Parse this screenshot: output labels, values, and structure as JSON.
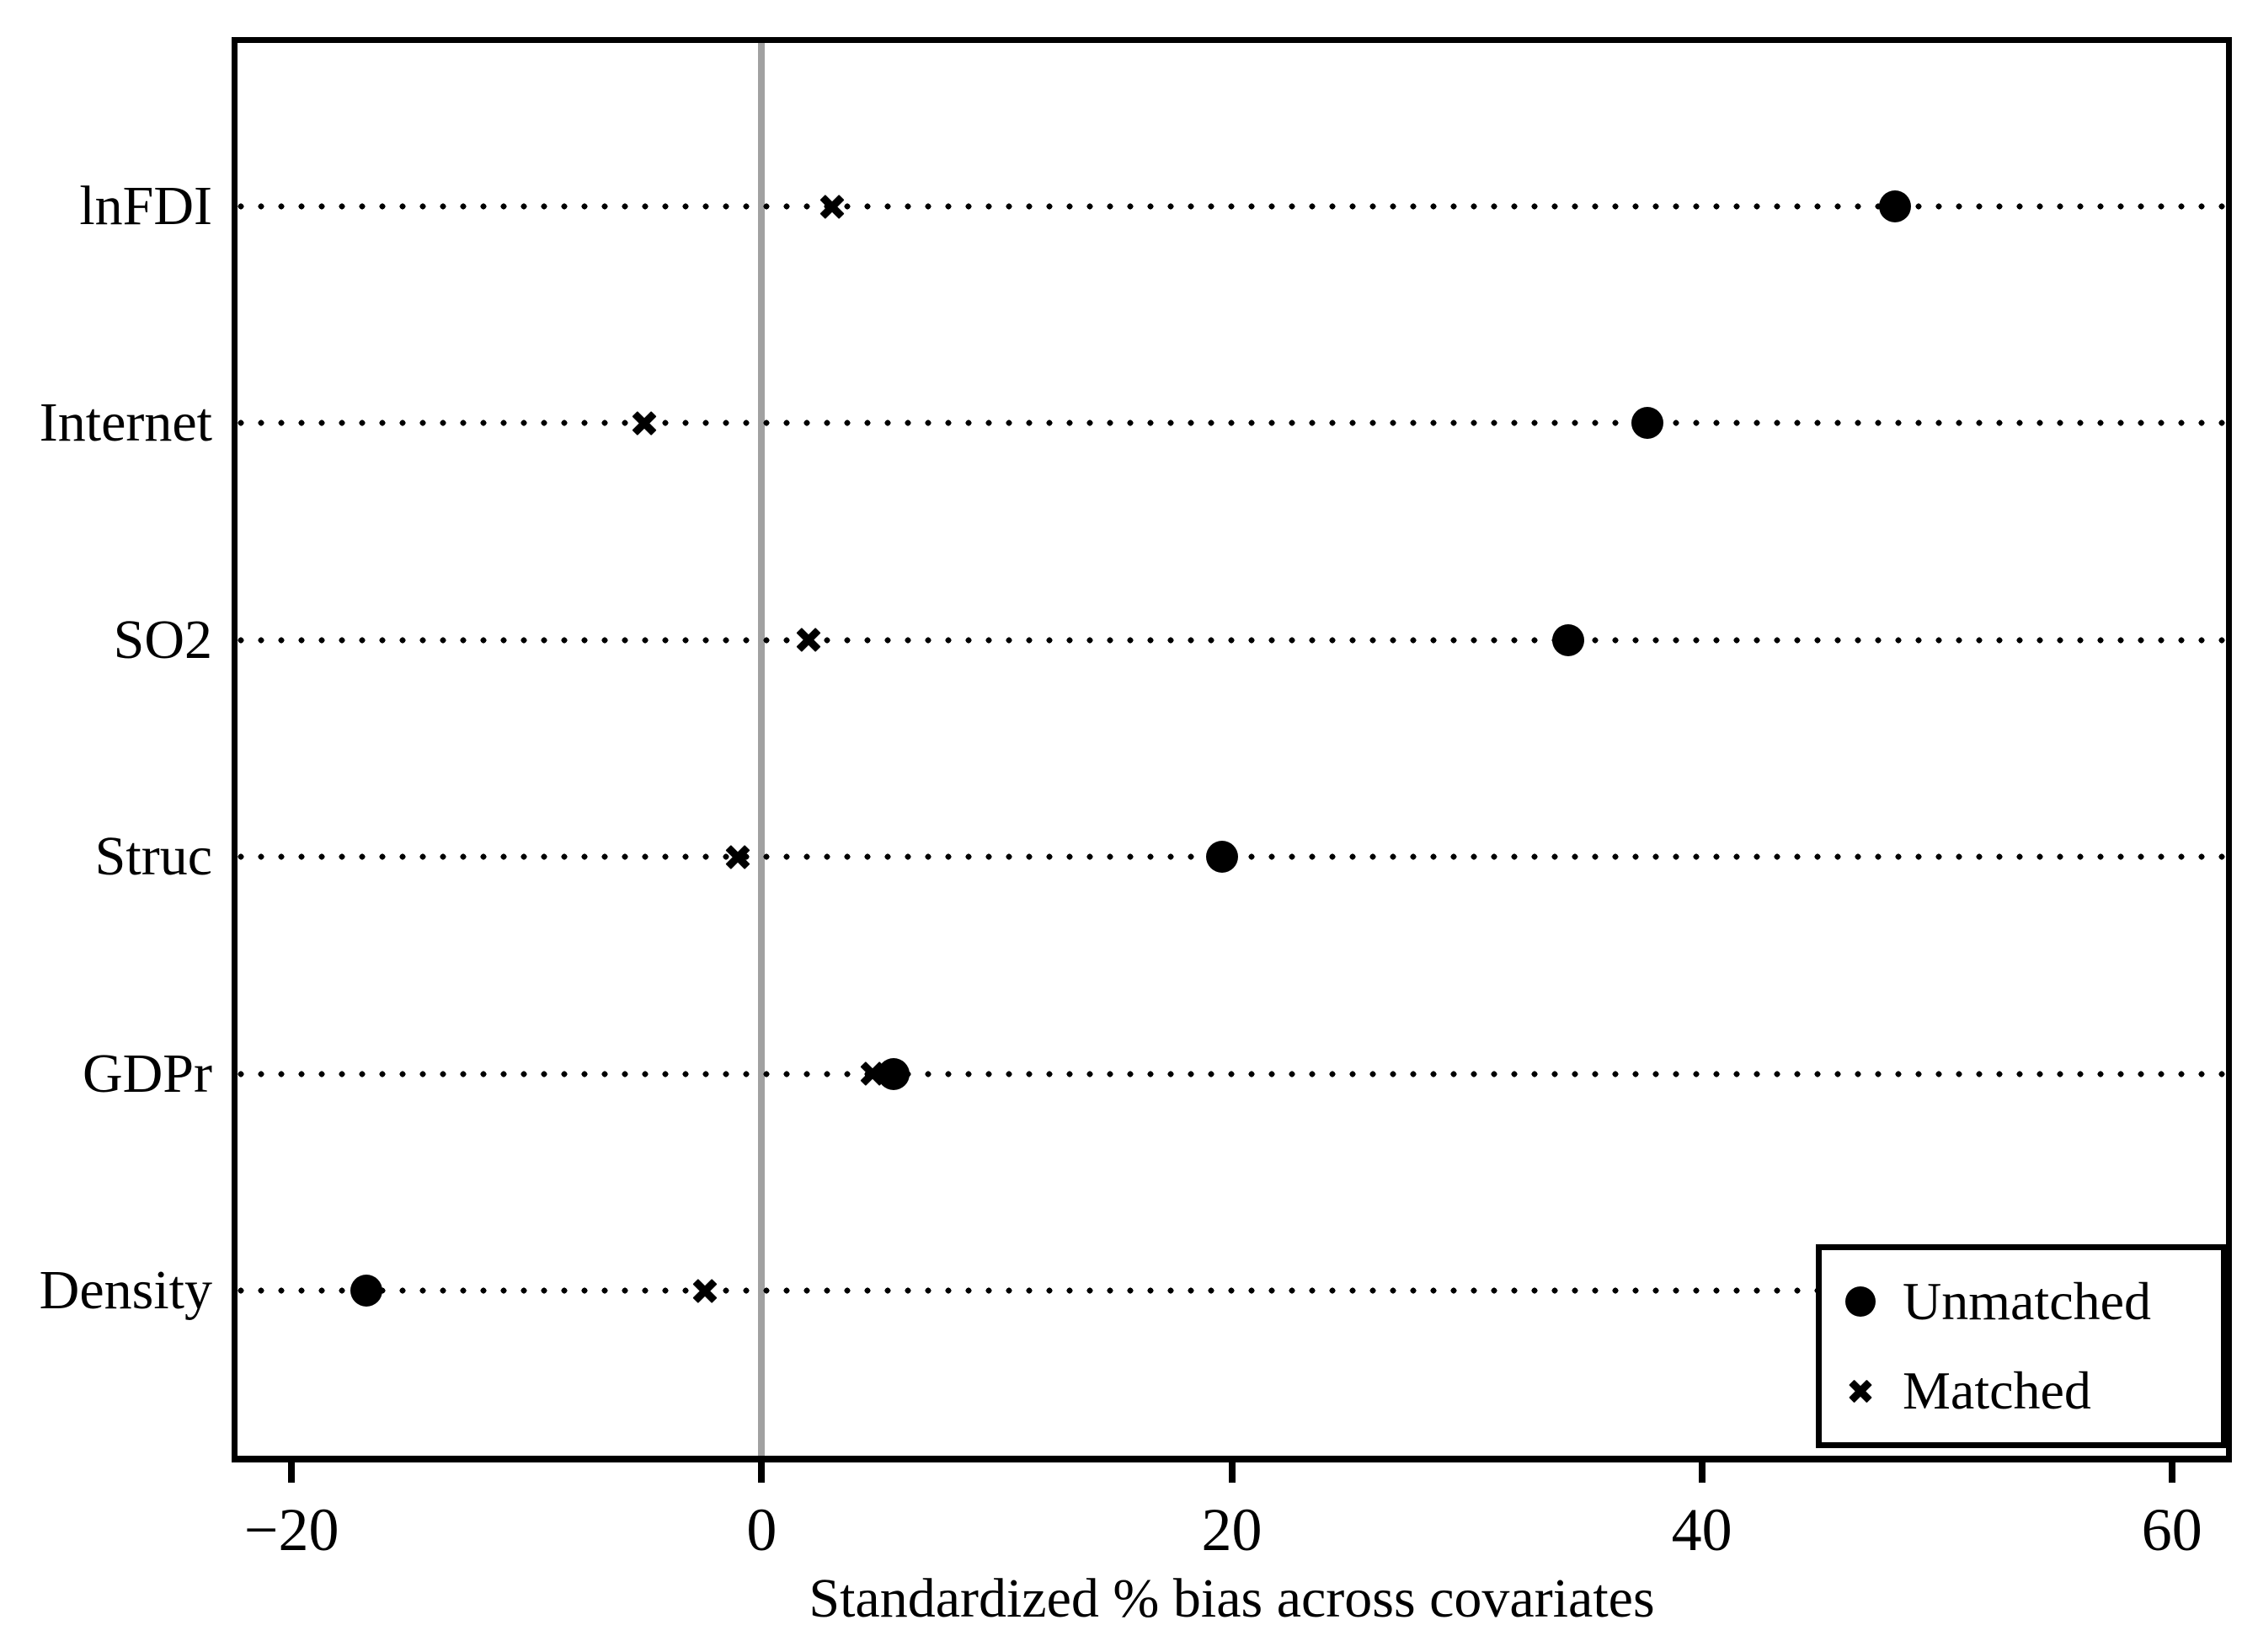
{
  "figure": {
    "title": "",
    "background_color": "#ffffff",
    "marker_color": "#000000",
    "zero_line_color": "#a1a1a1"
  },
  "legend": {
    "items": [
      {
        "marker": "circle",
        "label": "Unmatched"
      },
      {
        "marker": "x",
        "label": "Matched"
      }
    ]
  },
  "chart_data": {
    "type": "scatter",
    "subtype": "horizontal-dot-plot (covariate balance plot)",
    "categories": [
      "lnFDI",
      "Internet",
      "SO2",
      "Struc",
      "GDPr",
      "Density"
    ],
    "series": [
      {
        "name": "Unmatched",
        "marker": "circle",
        "values": [
          48.2,
          37.7,
          34.3,
          19.6,
          5.6,
          -16.8
        ]
      },
      {
        "name": "Matched",
        "marker": "x",
        "values": [
          3.0,
          -5.0,
          2.0,
          -1.0,
          4.7,
          -2.4
        ]
      }
    ],
    "xlabel": "Standardized % bias across covariates",
    "ylabel": "",
    "xlim": [
      -22.3,
      62.3
    ],
    "x_ticks": [
      {
        "value": -20,
        "label": "−20"
      },
      {
        "value": 0,
        "label": "0"
      },
      {
        "value": 20,
        "label": "20"
      },
      {
        "value": 40,
        "label": "40"
      },
      {
        "value": 60,
        "label": "60"
      }
    ],
    "zero_reference_line": 0,
    "grid": "dotted horizontal line per category",
    "legend_position": "inside bottom-right"
  }
}
